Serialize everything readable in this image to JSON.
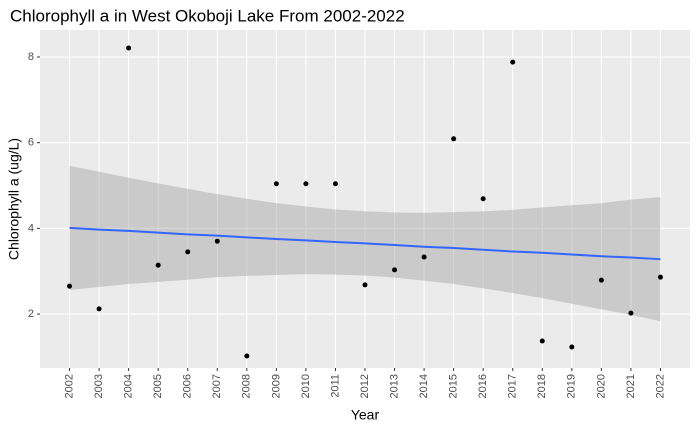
{
  "chart_data": {
    "type": "scatter",
    "title": "Chlorophyll a in West Okoboji Lake From 2002-2022",
    "x_label": "Year",
    "y_label": "Chlorophyll a (ug/L)",
    "x": [
      2002,
      2003,
      2004,
      2005,
      2006,
      2007,
      2008,
      2009,
      2010,
      2011,
      2012,
      2013,
      2014,
      2015,
      2016,
      2017,
      2018,
      2019,
      2020,
      2021,
      2022
    ],
    "values": [
      2.65,
      2.12,
      8.21,
      3.14,
      3.45,
      3.7,
      1.02,
      5.04,
      5.04,
      5.04,
      2.68,
      3.03,
      3.33,
      6.09,
      4.69,
      7.88,
      1.37,
      1.23,
      2.79,
      2.02,
      2.86
    ],
    "color": "#000000",
    "fit": {
      "color": "#3366FF",
      "values": [
        4.01,
        3.97,
        3.94,
        3.9,
        3.86,
        3.83,
        3.79,
        3.75,
        3.72,
        3.68,
        3.65,
        3.61,
        3.57,
        3.54,
        3.5,
        3.46,
        3.43,
        3.39,
        3.35,
        3.32,
        3.28
      ]
    },
    "band": {
      "color": "#999999",
      "lower": [
        2.56,
        2.63,
        2.7,
        2.75,
        2.8,
        2.86,
        2.89,
        2.91,
        2.93,
        2.92,
        2.9,
        2.85,
        2.78,
        2.7,
        2.6,
        2.49,
        2.37,
        2.24,
        2.11,
        1.98,
        1.83
      ],
      "upper": [
        5.46,
        5.32,
        5.18,
        5.05,
        4.92,
        4.8,
        4.69,
        4.59,
        4.51,
        4.44,
        4.4,
        4.37,
        4.36,
        4.38,
        4.4,
        4.43,
        4.49,
        4.54,
        4.59,
        4.67,
        4.73
      ]
    },
    "xlim": [
      2001,
      2023
    ],
    "xticks": [
      2002,
      2003,
      2004,
      2005,
      2006,
      2007,
      2008,
      2009,
      2010,
      2011,
      2012,
      2013,
      2014,
      2015,
      2016,
      2017,
      2018,
      2019,
      2020,
      2021,
      2022
    ],
    "ylim": [
      0.74,
      8.63
    ],
    "yticks": [
      2,
      4,
      6,
      8
    ],
    "grid": true
  }
}
